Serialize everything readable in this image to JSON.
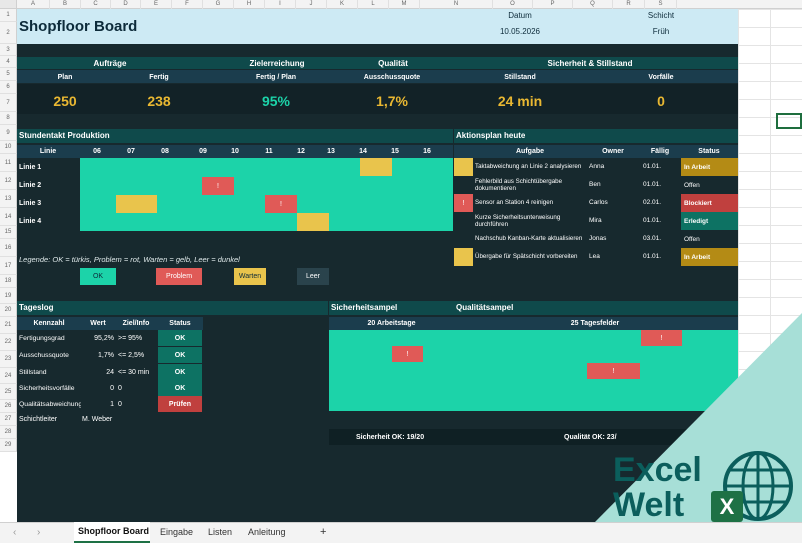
{
  "columns": [
    "A",
    "B",
    "C",
    "D",
    "E",
    "F",
    "G",
    "H",
    "I",
    "J",
    "K",
    "L",
    "M",
    "N",
    "O",
    "P",
    "Q",
    "R",
    "S"
  ],
  "rows": [
    "1",
    "2",
    "3",
    "4",
    "5",
    "6",
    "7",
    "8",
    "9",
    "10",
    "11",
    "12",
    "13",
    "14",
    "15",
    "16",
    "17",
    "18",
    "19",
    "20",
    "21",
    "22",
    "23",
    "24",
    "25",
    "26",
    "27",
    "28",
    "29"
  ],
  "header": {
    "title": "Shopfloor Board",
    "datum_label": "Datum",
    "datum_value": "10.05.2026",
    "schicht_label": "Schicht",
    "schicht_value": "Früh"
  },
  "kpi": {
    "auftraege": "Aufträge",
    "zielerreichung": "Zielerreichung",
    "qualitaet": "Qualität",
    "sicherheit": "Sicherheit & Stillstand",
    "plan_label": "Plan",
    "fertig_label": "Fertig",
    "fertig_plan_label": "Fertig / Plan",
    "ausschuss_label": "Ausschussquote",
    "stillstand_label": "Stillstand",
    "vorfaelle_label": "Vorfälle",
    "plan_value": "250",
    "fertig_value": "238",
    "fertig_plan_value": "95%",
    "ausschuss_value": "1,7%",
    "stillstand_value": "24 min",
    "vorfaelle_value": "0"
  },
  "colors": {
    "ok": "#1cd3a9",
    "problem": "#e05a57",
    "warten": "#e9c44c",
    "leer": "#17292e"
  },
  "takt": {
    "title": "Stundentakt Produktion",
    "linie_label": "Linie",
    "hours": [
      "06",
      "07",
      "08",
      "09",
      "10",
      "11",
      "12",
      "13",
      "14",
      "15",
      "16"
    ],
    "lines": [
      "Linie 1",
      "Linie 2",
      "Linie 3",
      "Linie 4"
    ],
    "legend": "Legende: OK = türkis, Problem = rot, Warten = gelb, Leer = dunkel",
    "legend_ok": "OK",
    "legend_problem": "Problem",
    "legend_warten": "Warten",
    "legend_leer": "Leer",
    "mark": "!"
  },
  "aktionsplan": {
    "title": "Aktionsplan heute",
    "headers": [
      "Aufgabe",
      "Owner",
      "Fällig",
      "Status"
    ],
    "items": [
      {
        "aufgabe": "Taktabweichung an Linie 2 analysieren",
        "owner": "Anna",
        "faellig": "01.01.",
        "status": "In Arbeit"
      },
      {
        "aufgabe": "Fehlerbild aus Schichtübergabe dokumentieren",
        "owner": "Ben",
        "faellig": "01.01.",
        "status": "Offen"
      },
      {
        "aufgabe": "Sensor an Station 4 reinigen",
        "owner": "Carlos",
        "faellig": "02.01.",
        "status": "Blockiert"
      },
      {
        "aufgabe": "Kurze Sicherheitsunterweisung durchführen",
        "owner": "Mira",
        "faellig": "01.01.",
        "status": "Erledigt"
      },
      {
        "aufgabe": "Nachschub Kanban-Karte aktualisieren",
        "owner": "Jonas",
        "faellig": "03.01.",
        "status": "Offen"
      },
      {
        "aufgabe": "Übergabe für Spätschicht vorbereiten",
        "owner": "Lea",
        "faellig": "01.01.",
        "status": "In Arbeit"
      }
    ],
    "mark": "!"
  },
  "tageslog": {
    "title": "Tageslog",
    "headers": [
      "Kennzahl",
      "Wert",
      "Ziel/Info",
      "Status"
    ],
    "rows": [
      {
        "k": "Fertigungsgrad",
        "w": "95,2%",
        "z": ">= 95%",
        "s": "OK"
      },
      {
        "k": "Ausschussquote",
        "w": "1,7%",
        "z": "<= 2,5%",
        "s": "OK"
      },
      {
        "k": "Stillstand",
        "w": "24",
        "z": "<= 30 min",
        "s": "OK"
      },
      {
        "k": "Sicherheitsvorfälle",
        "w": "0",
        "z": "0",
        "s": "OK"
      },
      {
        "k": "Qualitätsabweichungen",
        "w": "1",
        "z": "0",
        "s": "Prüfen"
      }
    ],
    "schichtleiter_label": "Schichtleiter",
    "schichtleiter_value": "M. Weber"
  },
  "ampel": {
    "sicherheit_title": "Sicherheitsampel",
    "qualitaet_title": "Qualitätsampel",
    "sicherheit_sub": "20 Arbeitstage",
    "qualitaet_sub": "25 Tagesfelder",
    "sicherheit_ok": "Sicherheit OK: 19/20",
    "qualitaet_ok": "Qualität OK: 23/",
    "mark": "!"
  },
  "logo": {
    "line1": "Excel",
    "line2": "Welt",
    "letter": "X"
  },
  "tabs": {
    "active": "Shopfloor Board",
    "t2": "Eingabe",
    "t3": "Listen",
    "t4": "Anleitung",
    "add": "+"
  }
}
